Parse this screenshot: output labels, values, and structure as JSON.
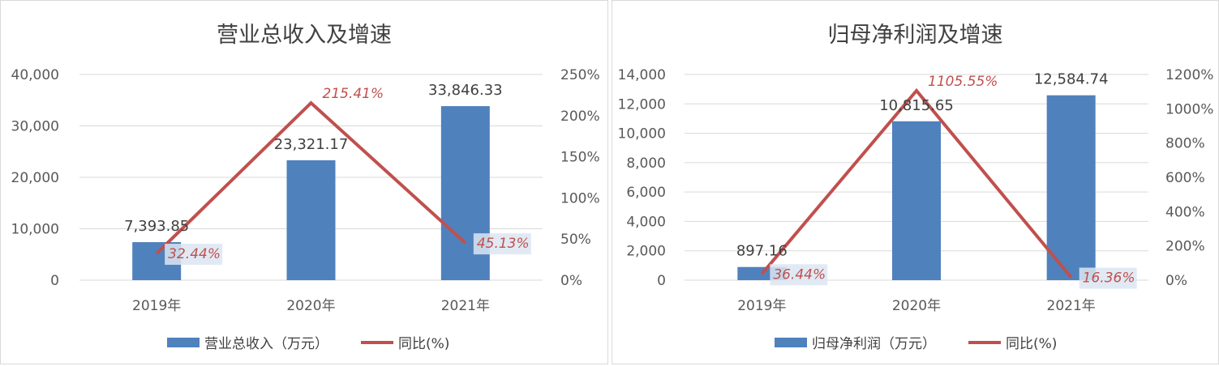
{
  "chart_data": [
    {
      "type": "bar",
      "title": "营业总收入及增速",
      "categories": [
        "2019年",
        "2020年",
        "2021年"
      ],
      "series": [
        {
          "name": "营业总收入（万元）",
          "kind": "bar",
          "axis": "left",
          "values": [
            7393.85,
            23321.17,
            33846.33
          ],
          "labels": [
            "7,393.85",
            "23,321.17",
            "33,846.33"
          ]
        },
        {
          "name": "同比(%)",
          "kind": "line",
          "axis": "right",
          "values": [
            32.44,
            215.41,
            45.13
          ],
          "labels": [
            "32.44%",
            "215.41%",
            "45.13%"
          ]
        }
      ],
      "ylim": [
        0,
        40000
      ],
      "y_ticks": [
        "0",
        "10,000",
        "20,000",
        "30,000",
        "40,000"
      ],
      "y2lim": [
        0,
        250
      ],
      "y2_ticks": [
        "0%",
        "50%",
        "100%",
        "150%",
        "200%",
        "250%"
      ],
      "legend": "bottom",
      "grid": true
    },
    {
      "type": "bar",
      "title": "归母净利润及增速",
      "categories": [
        "2019年",
        "2020年",
        "2021年"
      ],
      "series": [
        {
          "name": "归母净利润（万元）",
          "kind": "bar",
          "axis": "left",
          "values": [
            897.16,
            10815.65,
            12584.74
          ],
          "labels": [
            "897.16",
            "10,815.65",
            "12,584.74"
          ]
        },
        {
          "name": "同比(%)",
          "kind": "line",
          "axis": "right",
          "values": [
            36.44,
            1105.55,
            16.36
          ],
          "labels": [
            "36.44%",
            "1105.55%",
            "16.36%"
          ]
        }
      ],
      "ylim": [
        0,
        14000
      ],
      "y_ticks": [
        "0",
        "2,000",
        "4,000",
        "6,000",
        "8,000",
        "10,000",
        "12,000",
        "14,000"
      ],
      "y2lim": [
        0,
        1200
      ],
      "y2_ticks": [
        "0%",
        "200%",
        "400%",
        "600%",
        "800%",
        "1000%",
        "1200%"
      ],
      "legend": "bottom",
      "grid": true
    }
  ],
  "colors": {
    "bar": "#4f81bd",
    "line": "#c0504d",
    "line_label": "#c0504d",
    "text": "#595959",
    "grid": "#d9d9d9"
  }
}
